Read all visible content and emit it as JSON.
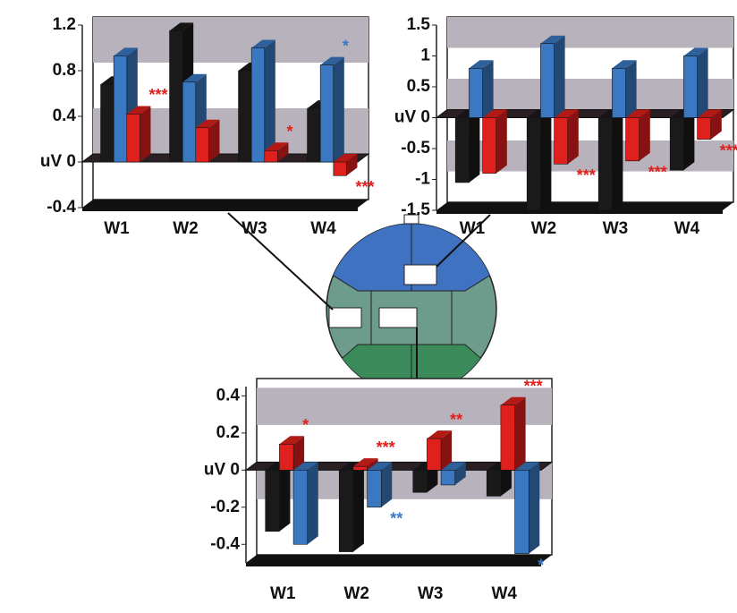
{
  "chart_data": [
    {
      "type": "bar3d",
      "ylim": [
        -0.4,
        1.2
      ],
      "yticks": [
        -0.4,
        {
          "value": 0,
          "label": "uV 0"
        },
        0.4,
        0.8,
        1.2
      ],
      "grid_bands": true,
      "categories": [
        "W1",
        "W2",
        "W3",
        "W4"
      ],
      "series": [
        {
          "color": "#1a1a1a",
          "values": [
            0.68,
            1.15,
            0.8,
            0.47
          ]
        },
        {
          "color": "#3a78c2",
          "values": [
            0.93,
            0.7,
            1.0,
            0.85
          ],
          "annotations": [
            null,
            null,
            null,
            "*"
          ]
        },
        {
          "color": "#e0201c",
          "values": [
            0.42,
            0.3,
            0.1,
            -0.12
          ],
          "annotations": [
            "***",
            null,
            "*",
            "***"
          ]
        }
      ]
    },
    {
      "type": "bar3d",
      "ylim": [
        -1.5,
        1.5
      ],
      "yticks": [
        -1.5,
        -1,
        -0.5,
        {
          "value": 0,
          "label": "uV 0"
        },
        0.5,
        1,
        1.5
      ],
      "grid_bands": true,
      "categories": [
        "W1",
        "W2",
        "W3",
        "W4"
      ],
      "series": [
        {
          "color": "#1a1a1a",
          "values": [
            -1.05,
            -1.5,
            -1.5,
            -0.85
          ]
        },
        {
          "color": "#3a78c2",
          "values": [
            0.8,
            1.2,
            0.8,
            1.0
          ]
        },
        {
          "color": "#e0201c",
          "values": [
            -0.9,
            -0.75,
            -0.7,
            -0.35
          ],
          "annotations": [
            null,
            "***",
            "***",
            "***"
          ]
        }
      ]
    },
    {
      "type": "bar3d",
      "ylim": [
        -0.5,
        0.45
      ],
      "yticks": [
        -0.4,
        -0.2,
        {
          "value": 0,
          "label": "uV 0"
        },
        0.2,
        0.4
      ],
      "grid_bands": true,
      "categories": [
        "W1",
        "W2",
        "W3",
        "W4"
      ],
      "series": [
        {
          "color": "#1a1a1a",
          "values": [
            -0.33,
            -0.44,
            -0.12,
            -0.14
          ]
        },
        {
          "color": "#e0201c",
          "values": [
            0.14,
            0.02,
            0.17,
            0.35
          ],
          "annotations": [
            "*",
            "***",
            "**",
            "***"
          ]
        },
        {
          "color": "#3a78c2",
          "values": [
            -0.4,
            -0.2,
            -0.08,
            -0.45
          ],
          "annotations": [
            null,
            "**",
            null,
            "*"
          ]
        }
      ]
    }
  ]
}
